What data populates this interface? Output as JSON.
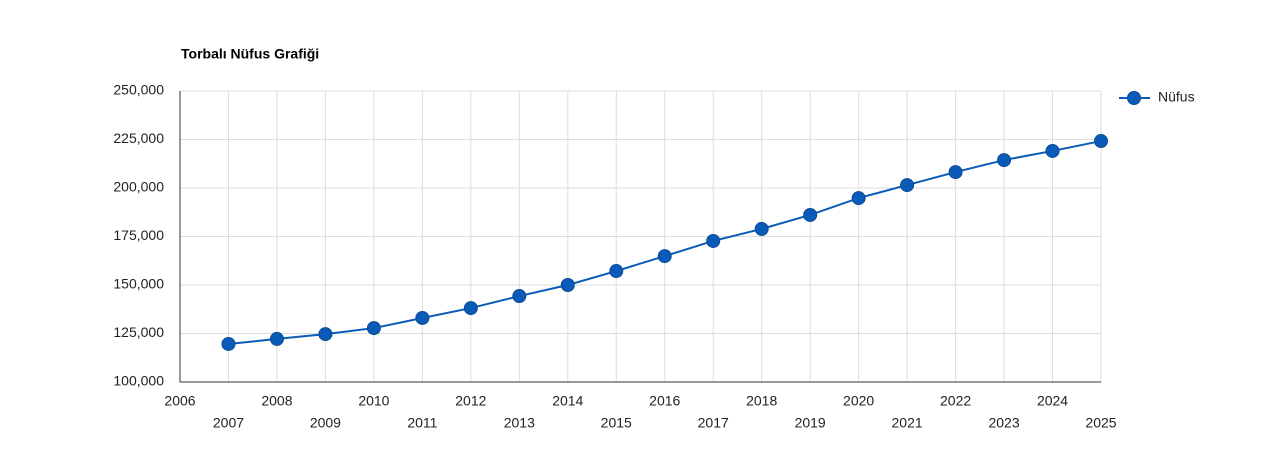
{
  "chart_data": {
    "type": "line",
    "title": "Torbalı Nüfus Grafiği",
    "x": [
      2007,
      2008,
      2009,
      2010,
      2011,
      2012,
      2013,
      2014,
      2015,
      2016,
      2017,
      2018,
      2019,
      2020,
      2021,
      2022,
      2023,
      2024,
      2025
    ],
    "series": [
      {
        "name": "Nüfus",
        "color": "#0a5bb8",
        "values": [
          119600,
          122200,
          124700,
          127800,
          133000,
          138100,
          144300,
          150000,
          157200,
          164900,
          172700,
          178900,
          186100,
          194800,
          201500,
          208200,
          214400,
          219100,
          224200
        ]
      }
    ],
    "xlim": [
      2006,
      2025
    ],
    "xticks": [
      2006,
      2007,
      2008,
      2009,
      2010,
      2011,
      2012,
      2013,
      2014,
      2015,
      2016,
      2017,
      2018,
      2019,
      2020,
      2021,
      2022,
      2023,
      2024,
      2025
    ],
    "ylim": [
      100000,
      250000
    ],
    "yticks": [
      {
        "value": 100000,
        "label": "100,000"
      },
      {
        "value": 125000,
        "label": "125,000"
      },
      {
        "value": 150000,
        "label": "150,000"
      },
      {
        "value": 175000,
        "label": "175,000"
      },
      {
        "value": 200000,
        "label": "200,000"
      },
      {
        "value": 225000,
        "label": "225,000"
      },
      {
        "value": 250000,
        "label": "250,000"
      }
    ],
    "grid": true,
    "legend": "right"
  }
}
